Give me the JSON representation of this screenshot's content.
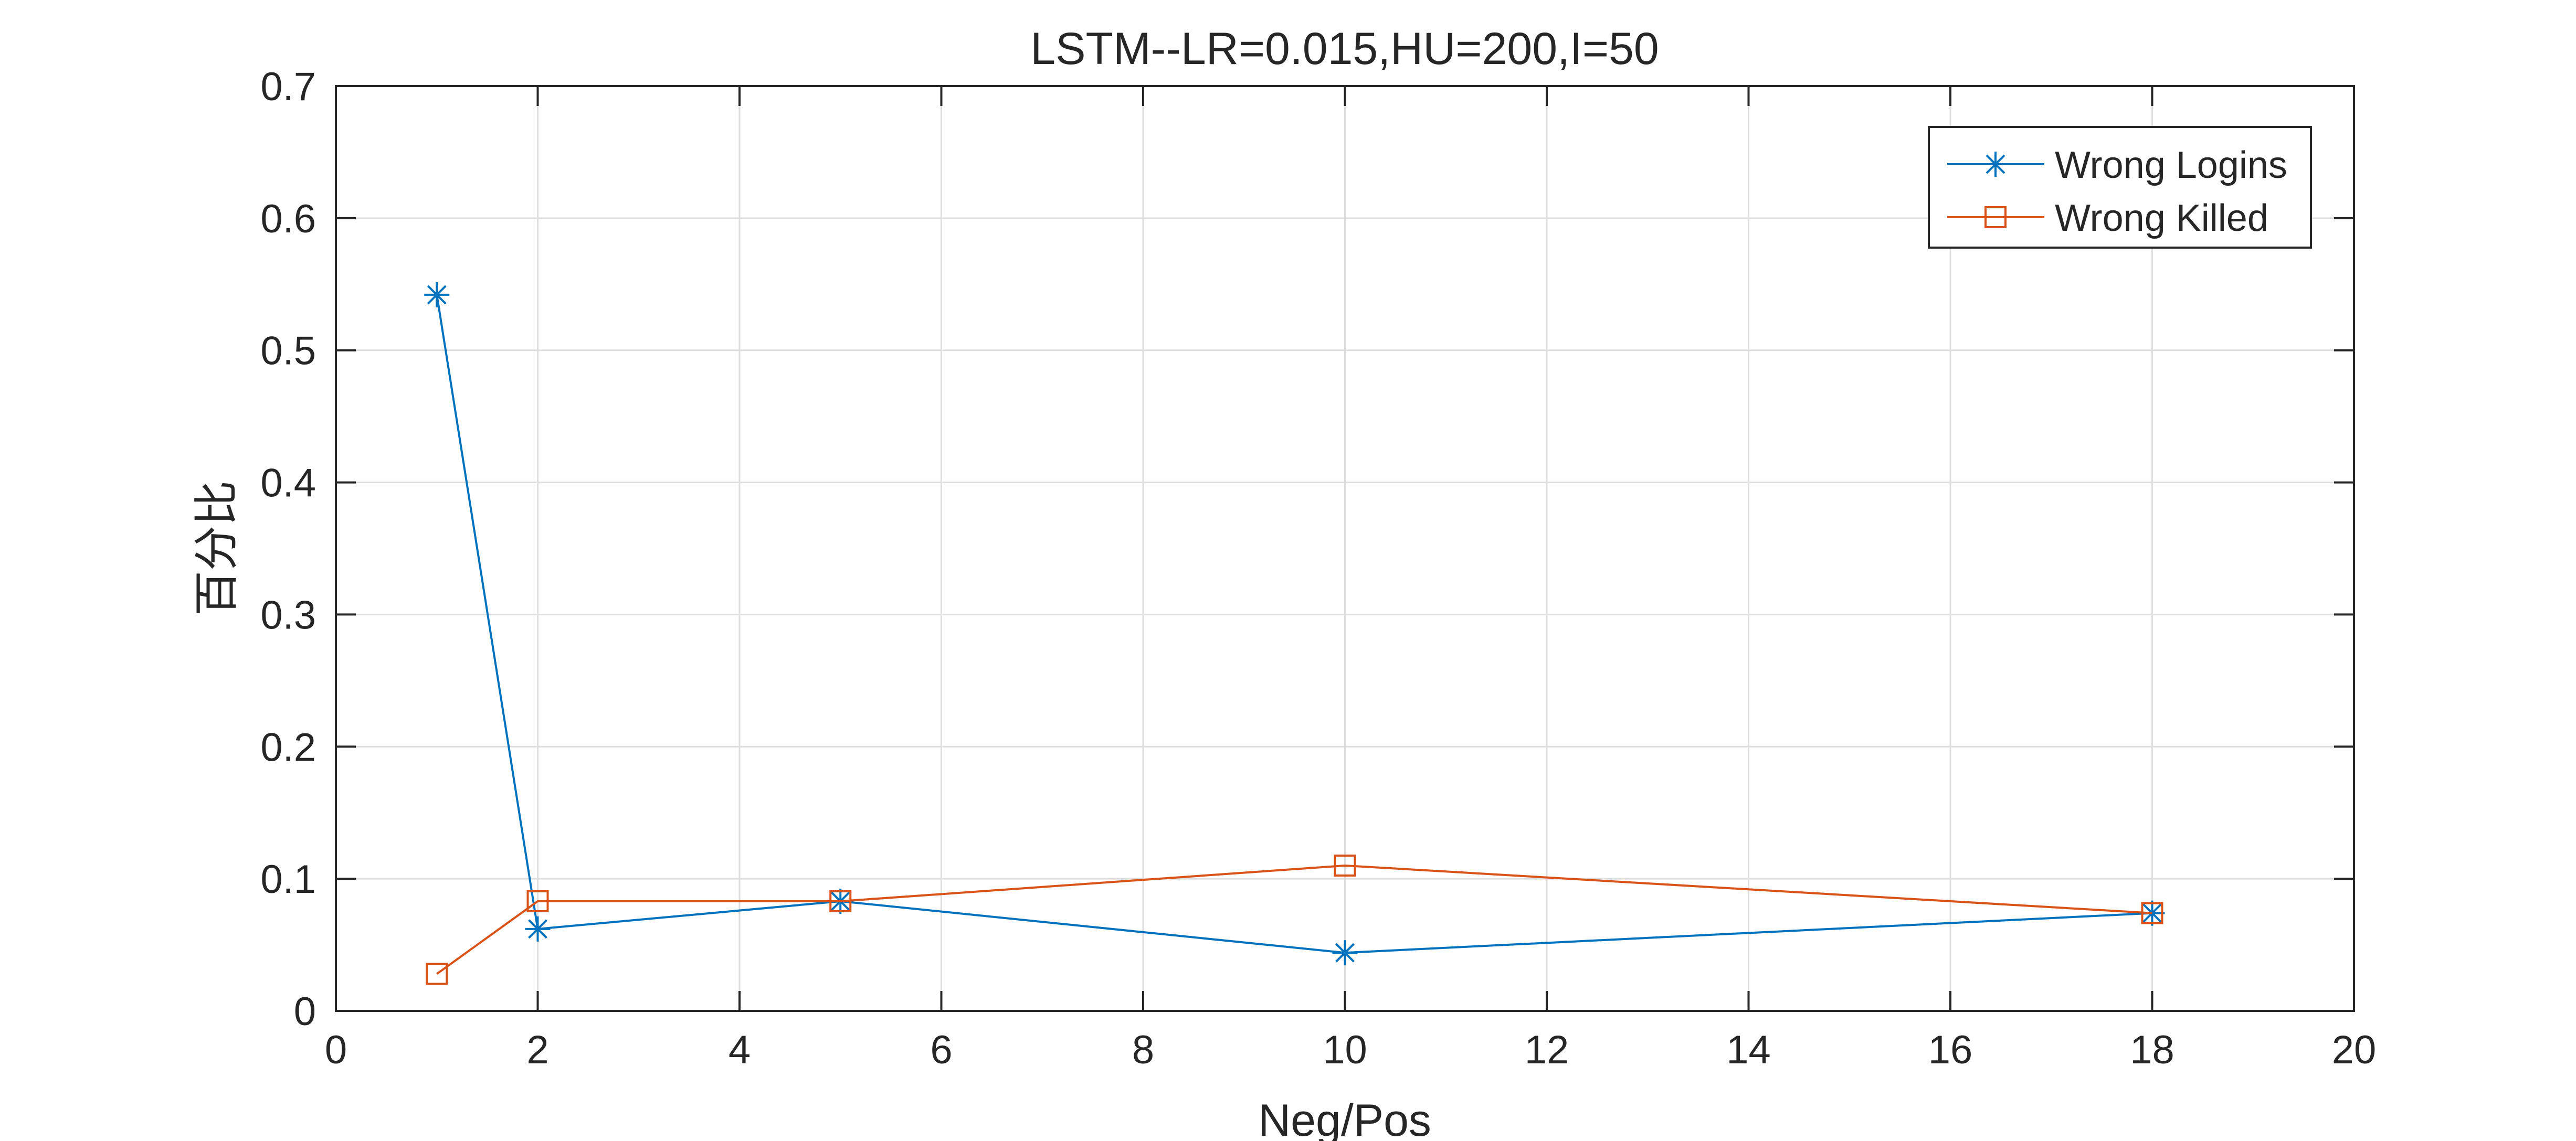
{
  "chart_data": {
    "type": "line",
    "title": "LSTM--LR=0.015,HU=200,I=50",
    "xlabel": "Neg/Pos",
    "ylabel": "百分比",
    "xlim": [
      0,
      20
    ],
    "ylim": [
      0,
      0.7
    ],
    "xticks": [
      0,
      2,
      4,
      6,
      8,
      10,
      12,
      14,
      16,
      18,
      20
    ],
    "xtick_labels": [
      "0",
      "2",
      "4",
      "6",
      "8",
      "10",
      "12",
      "14",
      "16",
      "18",
      "20"
    ],
    "yticks": [
      0,
      0.1,
      0.2,
      0.3,
      0.4,
      0.5,
      0.6,
      0.7
    ],
    "ytick_labels": [
      "0",
      "0.1",
      "0.2",
      "0.3",
      "0.4",
      "0.5",
      "0.6",
      "0.7"
    ],
    "grid": true,
    "legend_position": "top-right",
    "x": [
      1,
      2,
      5,
      10,
      18
    ],
    "series": [
      {
        "name": "Wrong Logins",
        "values": [
          0.542,
          0.062,
          0.083,
          0.044,
          0.074
        ],
        "color": "#0072BD",
        "marker": "asterisk"
      },
      {
        "name": "Wrong Killed",
        "values": [
          0.028,
          0.083,
          0.083,
          0.11,
          0.074
        ],
        "color": "#D95319",
        "marker": "square"
      }
    ]
  }
}
